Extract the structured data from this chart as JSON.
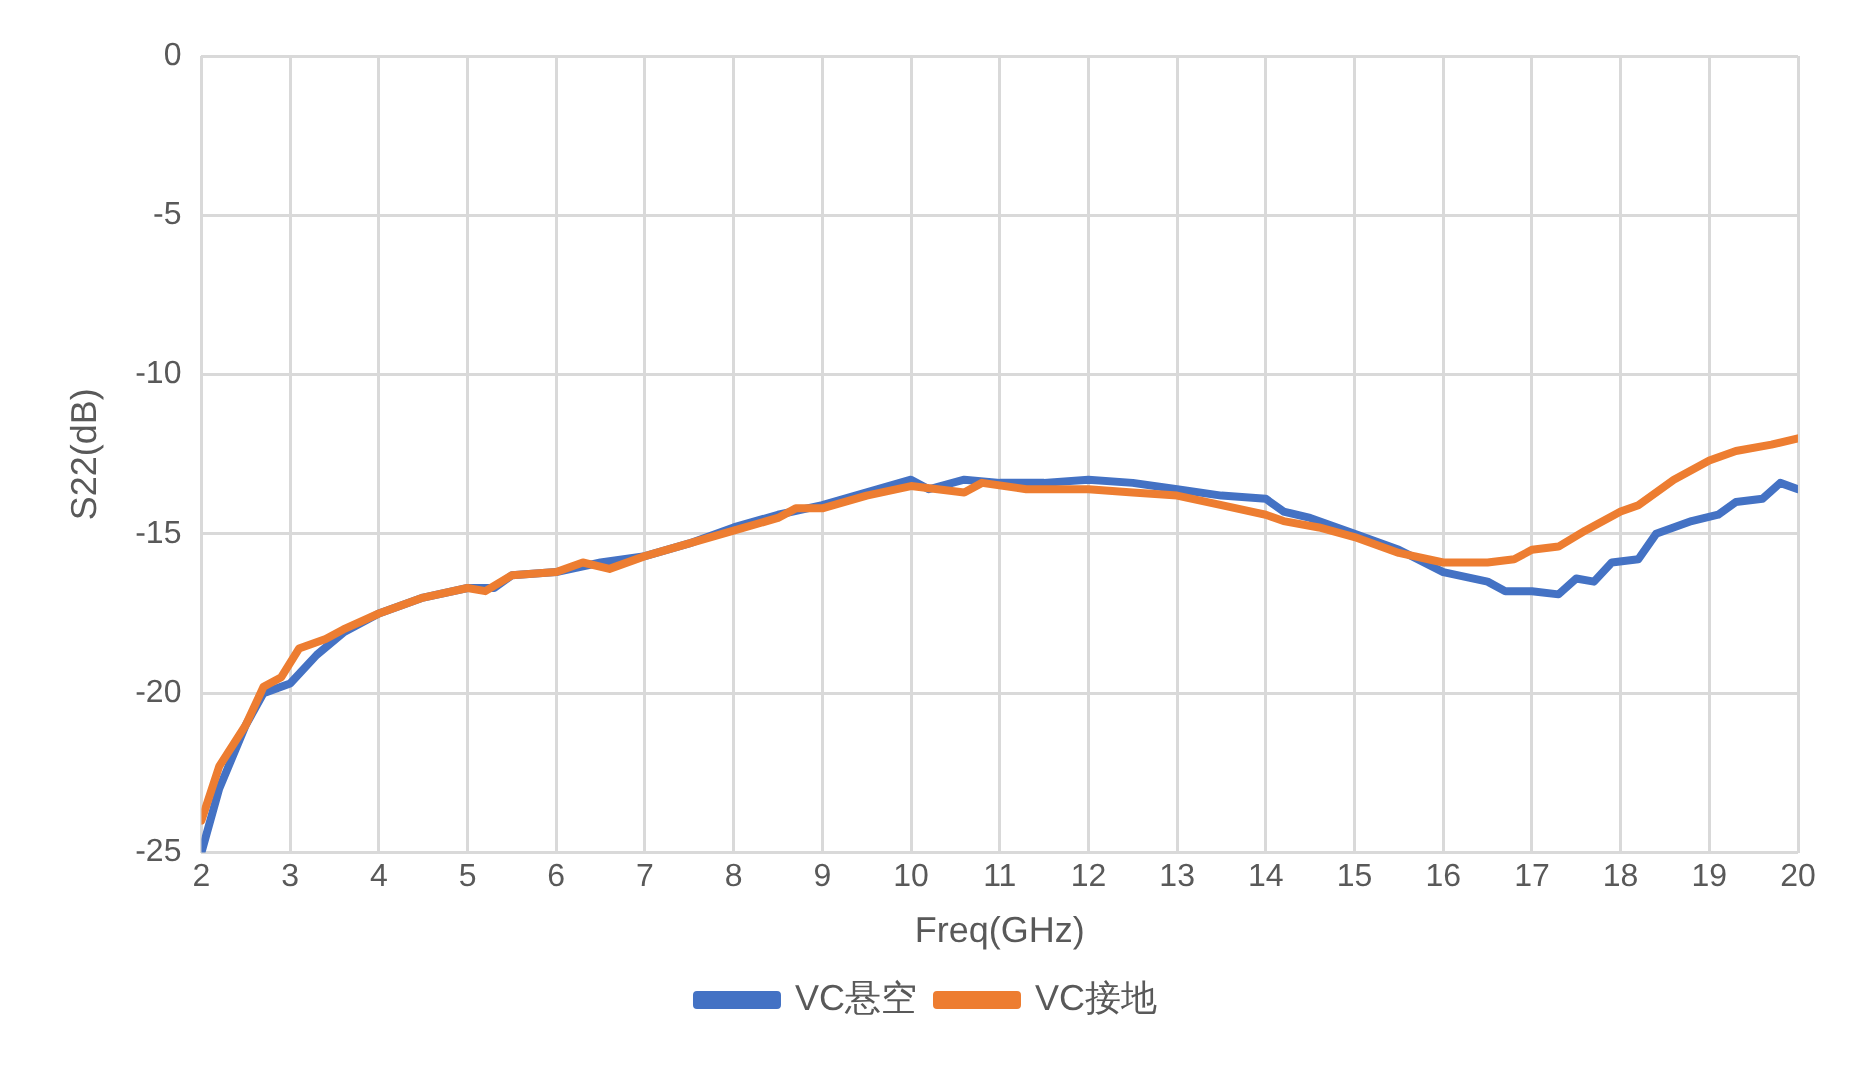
{
  "chart_data": {
    "type": "line",
    "xlabel": "Freq(GHz)",
    "ylabel": "S22(dB)",
    "xlim": [
      2,
      20
    ],
    "xticks": [
      2,
      3,
      4,
      5,
      6,
      7,
      8,
      9,
      10,
      11,
      12,
      13,
      14,
      15,
      16,
      17,
      18,
      19,
      20
    ],
    "ylim": [
      -25,
      0
    ],
    "yticks": [
      -25,
      -20,
      -15,
      -10,
      -5,
      0
    ],
    "grid": true,
    "legend": "bottom",
    "marker": "none",
    "line_style": "solid",
    "series": [
      {
        "name": "VC悬空",
        "color": "#4472c4",
        "x": [
          2,
          2.2,
          2.5,
          2.7,
          3,
          3.3,
          3.6,
          4,
          4.5,
          5,
          5.3,
          5.5,
          6,
          6.5,
          7,
          7.5,
          8,
          8.5,
          9,
          9.5,
          10,
          10.2,
          10.6,
          11,
          11.5,
          12,
          12.5,
          13,
          13.5,
          14,
          14.2,
          14.5,
          15,
          15.5,
          16,
          16.5,
          16.7,
          17,
          17.3,
          17.5,
          17.7,
          17.9,
          18.2,
          18.4,
          18.8,
          19.1,
          19.3,
          19.6,
          19.8,
          20
        ],
        "values": [
          -25,
          -23,
          -21,
          -20,
          -19.7,
          -18.8,
          -18.1,
          -17.5,
          -17,
          -16.7,
          -16.7,
          -16.3,
          -16.2,
          -15.9,
          -15.7,
          -15.3,
          -14.8,
          -14.4,
          -14.1,
          -13.7,
          -13.3,
          -13.6,
          -13.3,
          -13.4,
          -13.4,
          -13.3,
          -13.4,
          -13.6,
          -13.8,
          -13.9,
          -14.3,
          -14.5,
          -15,
          -15.5,
          -16.2,
          -16.5,
          -16.8,
          -16.8,
          -16.9,
          -16.4,
          -16.5,
          -15.9,
          -15.8,
          -15,
          -14.6,
          -14.4,
          -14,
          -13.9,
          -13.4,
          -13.6
        ]
      },
      {
        "name": "VC接地",
        "color": "#ed7d31",
        "x": [
          2,
          2.2,
          2.5,
          2.7,
          2.9,
          3.1,
          3.4,
          3.6,
          4,
          4.5,
          5,
          5.2,
          5.5,
          6,
          6.3,
          6.6,
          7,
          7.5,
          8,
          8.5,
          8.7,
          9,
          9.5,
          10,
          10.3,
          10.6,
          10.8,
          11.3,
          12,
          12.5,
          13,
          13.5,
          14,
          14.2,
          14.6,
          15,
          15.5,
          16,
          16.5,
          16.8,
          17,
          17.3,
          17.6,
          18,
          18.2,
          18.6,
          19,
          19.3,
          19.7,
          20
        ],
        "values": [
          -24,
          -22.3,
          -21,
          -19.8,
          -19.5,
          -18.6,
          -18.3,
          -18,
          -17.5,
          -17,
          -16.7,
          -16.8,
          -16.3,
          -16.2,
          -15.9,
          -16.1,
          -15.7,
          -15.3,
          -14.9,
          -14.5,
          -14.2,
          -14.2,
          -13.8,
          -13.5,
          -13.6,
          -13.7,
          -13.4,
          -13.6,
          -13.6,
          -13.7,
          -13.8,
          -14.1,
          -14.4,
          -14.6,
          -14.8,
          -15.1,
          -15.6,
          -15.9,
          -15.9,
          -15.8,
          -15.5,
          -15.4,
          -14.9,
          -14.3,
          -14.1,
          -13.3,
          -12.7,
          -12.4,
          -12.2,
          -12
        ]
      }
    ]
  }
}
